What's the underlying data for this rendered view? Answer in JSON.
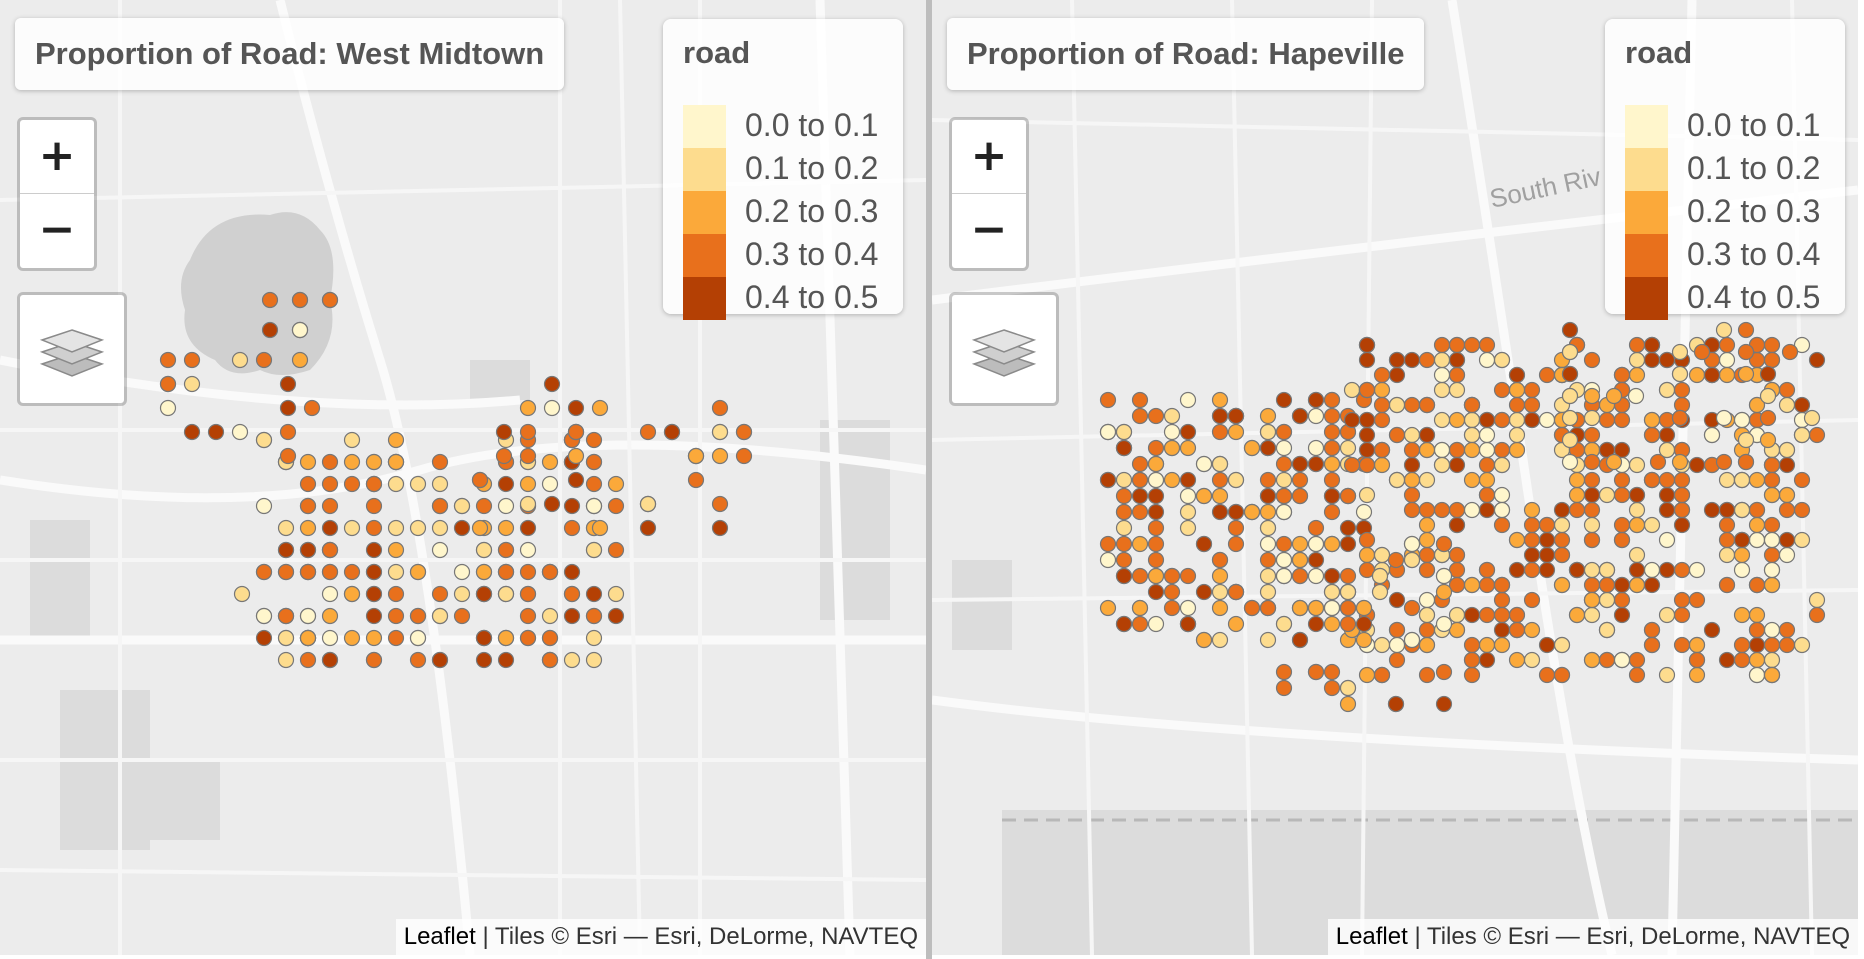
{
  "maps": [
    {
      "title": "Proportion of Road: West Midtown",
      "zoom": {
        "in_label": "+",
        "out_label": "−"
      },
      "layers_icon": "layers-icon",
      "basemap_label": "",
      "legend": {
        "title": "road",
        "items": [
          {
            "label": "0.0 to 0.1",
            "color": "#FFF6CC"
          },
          {
            "label": "0.1 to 0.2",
            "color": "#FDDC8E"
          },
          {
            "label": "0.2 to 0.3",
            "color": "#FBA93A"
          },
          {
            "label": "0.3 to 0.4",
            "color": "#E8701C"
          },
          {
            "label": "0.4 to 0.5",
            "color": "#B44004"
          }
        ]
      },
      "attribution": {
        "link": "Leaflet",
        "text": " | Tiles © Esri — Esri, DeLorme, NAVTEQ"
      }
    },
    {
      "title": "Proportion of Road: Hapeville",
      "zoom": {
        "in_label": "+",
        "out_label": "−"
      },
      "layers_icon": "layers-icon",
      "basemap_label": "South Riv",
      "legend": {
        "title": "road",
        "items": [
          {
            "label": "0.0 to 0.1",
            "color": "#FFF6CC"
          },
          {
            "label": "0.1 to 0.2",
            "color": "#FDDC8E"
          },
          {
            "label": "0.2 to 0.3",
            "color": "#FBA93A"
          },
          {
            "label": "0.3 to 0.4",
            "color": "#E8701C"
          },
          {
            "label": "0.4 to 0.5",
            "color": "#B44004"
          }
        ]
      },
      "attribution": {
        "link": "Leaflet",
        "text": " | Tiles © Esri — Esri, DeLorme, NAVTEQ"
      }
    }
  ]
}
